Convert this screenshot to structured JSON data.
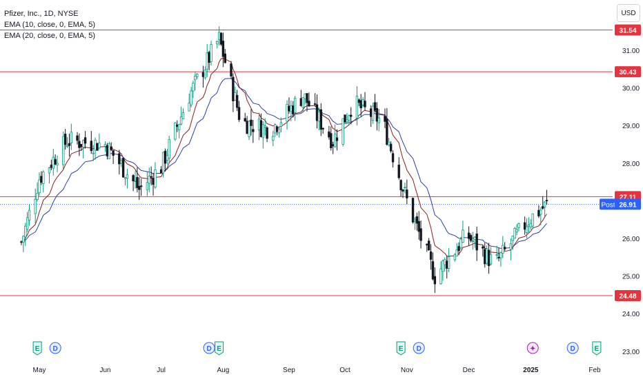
{
  "header": {
    "symbol_line": "Pfizer, Inc., 1D, NYSE",
    "ema1_label": "EMA (10, close, 0, EMA, 5)",
    "ema2_label": "EMA (20, close, 0, EMA, 5)",
    "currency_button": "USD"
  },
  "chart_data": {
    "type": "candlestick",
    "y_ticks": [
      "31.00",
      "30.00",
      "29.00",
      "28.00",
      "26.00",
      "25.00",
      "24.00",
      "23.00"
    ],
    "y_tick_values": [
      31,
      30,
      29,
      28,
      26,
      25,
      24,
      23
    ],
    "ylim": [
      23.0,
      31.9
    ],
    "x_labels": [
      "May",
      "Jun",
      "Jul",
      "Aug",
      "Sep",
      "Oct",
      "Nov",
      "Dec",
      "2025",
      "Feb"
    ],
    "x_label_dates": [
      "2024-05-01",
      "2024-06-03",
      "2024-07-01",
      "2024-08-01",
      "2024-09-03",
      "2024-10-01",
      "2024-11-01",
      "2024-12-02",
      "2025-01-02",
      "2025-02-03"
    ],
    "horizontal_levels": [
      {
        "value": 31.54,
        "label": "31.54"
      },
      {
        "value": 30.43,
        "label": "30.43"
      },
      {
        "value": 27.11,
        "label": "27.11"
      },
      {
        "value": 24.48,
        "label": "24.48"
      }
    ],
    "last_price": {
      "value": 26.91,
      "label": "26.91",
      "tag": "Post"
    },
    "colors": {
      "up": "#089981",
      "down": "#131722",
      "ema10": "#8b1a1a",
      "ema20": "#2a3f9e",
      "level": "#e5343d",
      "post": "#2962ff"
    },
    "events": [
      {
        "date": "2024-04-30",
        "type": "earnings",
        "icon": "E"
      },
      {
        "date": "2024-05-09",
        "type": "dividend",
        "icon": "D"
      },
      {
        "date": "2024-07-25",
        "type": "dividend",
        "icon": "D"
      },
      {
        "date": "2024-07-30",
        "type": "earnings",
        "icon": "E"
      },
      {
        "date": "2024-10-29",
        "type": "earnings",
        "icon": "E"
      },
      {
        "date": "2024-11-07",
        "type": "dividend",
        "icon": "D"
      },
      {
        "date": "2025-01-03",
        "type": "split",
        "icon": "✦"
      },
      {
        "date": "2025-01-23",
        "type": "dividend",
        "icon": "D"
      },
      {
        "date": "2025-02-04",
        "type": "earnings",
        "icon": "E"
      }
    ],
    "closes_sampled": [
      {
        "date": "2024-04-22",
        "close": 25.9
      },
      {
        "date": "2024-05-01",
        "close": 27.6
      },
      {
        "date": "2024-05-15",
        "close": 28.6
      },
      {
        "date": "2024-06-03",
        "close": 28.5
      },
      {
        "date": "2024-06-20",
        "close": 27.3
      },
      {
        "date": "2024-07-01",
        "close": 27.9
      },
      {
        "date": "2024-07-15",
        "close": 29.8
      },
      {
        "date": "2024-07-30",
        "close": 31.3
      },
      {
        "date": "2024-08-10",
        "close": 29.1
      },
      {
        "date": "2024-08-25",
        "close": 28.9
      },
      {
        "date": "2024-09-10",
        "close": 29.8
      },
      {
        "date": "2024-09-25",
        "close": 28.6
      },
      {
        "date": "2024-10-05",
        "close": 29.6
      },
      {
        "date": "2024-10-20",
        "close": 29.1
      },
      {
        "date": "2024-11-01",
        "close": 27.0
      },
      {
        "date": "2024-11-15",
        "close": 25.0
      },
      {
        "date": "2024-12-01",
        "close": 26.1
      },
      {
        "date": "2024-12-15",
        "close": 25.3
      },
      {
        "date": "2025-01-01",
        "close": 26.5
      },
      {
        "date": "2025-01-10",
        "close": 26.9
      }
    ]
  }
}
